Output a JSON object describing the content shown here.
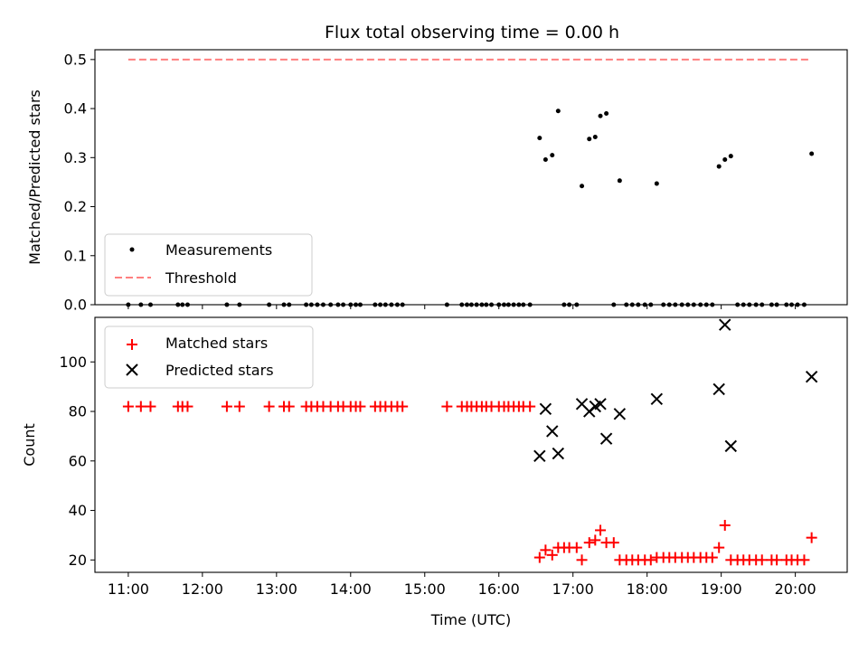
{
  "chart_data": [
    {
      "type": "scatter",
      "title": "Flux total observing time = 0.00 h",
      "ylabel": "Matched/Predicted stars",
      "xlabel": "",
      "x_unit": "hours UTC",
      "xlim": [
        10.55,
        20.7
      ],
      "ylim": [
        0,
        0.52
      ],
      "yticks": [
        "0.0",
        "0.1",
        "0.2",
        "0.3",
        "0.4",
        "0.5"
      ],
      "grid": false,
      "legend_placement": "lower-left",
      "series": [
        {
          "name": "Measurements",
          "marker": "dot",
          "color": "#000000",
          "x": [
            11.0,
            11.17,
            11.3,
            11.67,
            11.73,
            11.8,
            12.33,
            12.5,
            12.9,
            13.1,
            13.17,
            13.4,
            13.47,
            13.55,
            13.63,
            13.73,
            13.83,
            13.9,
            14.0,
            14.07,
            14.13,
            14.33,
            14.4,
            14.47,
            14.55,
            14.63,
            14.7,
            15.3,
            15.5,
            15.57,
            15.63,
            15.7,
            15.77,
            15.83,
            15.9,
            16.0,
            16.07,
            16.13,
            16.2,
            16.27,
            16.33,
            16.42,
            16.55,
            16.63,
            16.72,
            16.8,
            16.88,
            16.95,
            17.05,
            17.12,
            17.22,
            17.3,
            17.37,
            17.45,
            17.55,
            17.63,
            17.72,
            17.8,
            17.88,
            17.97,
            18.05,
            18.13,
            18.22,
            18.3,
            18.38,
            18.47,
            18.55,
            18.63,
            18.72,
            18.8,
            18.88,
            18.97,
            19.05,
            19.13,
            19.22,
            19.3,
            19.38,
            19.47,
            19.55,
            19.68,
            19.75,
            19.88,
            19.95,
            20.03,
            20.12,
            20.22
          ],
          "y": [
            0,
            0,
            0,
            0,
            0,
            0,
            0,
            0,
            0,
            0,
            0,
            0,
            0,
            0,
            0,
            0,
            0,
            0,
            0,
            0,
            0,
            0,
            0,
            0,
            0,
            0,
            0,
            0,
            0,
            0,
            0,
            0,
            0,
            0,
            0,
            0,
            0,
            0,
            0,
            0,
            0,
            0,
            0.34,
            0.296,
            0.305,
            0.395,
            0,
            0,
            0,
            0.242,
            0.338,
            0.342,
            0.385,
            0.39,
            0,
            0.253,
            0,
            0,
            0,
            0,
            0,
            0.247,
            0,
            0,
            0,
            0,
            0,
            0,
            0,
            0,
            0,
            0.282,
            0.296,
            0.303,
            0,
            0,
            0,
            0,
            0,
            0,
            0,
            0,
            0,
            0,
            0,
            0.308
          ]
        },
        {
          "name": "Threshold",
          "type": "line",
          "style": "dashed",
          "color": "#ff7f7f",
          "x": [
            11.0,
            20.22
          ],
          "y": [
            0.5,
            0.5
          ]
        }
      ]
    },
    {
      "type": "scatter",
      "title": "",
      "ylabel": "Count",
      "xlabel": "Time (UTC)",
      "x_unit": "hours UTC",
      "xlim": [
        10.55,
        20.7
      ],
      "xticks": [
        "11:00",
        "12:00",
        "13:00",
        "14:00",
        "15:00",
        "16:00",
        "17:00",
        "18:00",
        "19:00",
        "20:00"
      ],
      "ylim": [
        15,
        118
      ],
      "yticks": [
        "20",
        "40",
        "60",
        "80",
        "100"
      ],
      "grid": false,
      "legend_placement": "upper-left",
      "series": [
        {
          "name": "Matched stars",
          "marker": "plus",
          "color": "#ff0000",
          "x": [
            11.0,
            11.17,
            11.3,
            11.67,
            11.73,
            11.8,
            12.33,
            12.5,
            12.9,
            13.1,
            13.17,
            13.4,
            13.47,
            13.55,
            13.63,
            13.73,
            13.83,
            13.9,
            14.0,
            14.07,
            14.13,
            14.33,
            14.4,
            14.47,
            14.55,
            14.63,
            14.7,
            15.3,
            15.5,
            15.57,
            15.63,
            15.7,
            15.77,
            15.83,
            15.9,
            16.0,
            16.07,
            16.13,
            16.2,
            16.27,
            16.33,
            16.42,
            16.55,
            16.63,
            16.72,
            16.8,
            16.88,
            16.95,
            17.05,
            17.12,
            17.22,
            17.3,
            17.37,
            17.45,
            17.55,
            17.63,
            17.72,
            17.8,
            17.88,
            17.97,
            18.05,
            18.13,
            18.22,
            18.3,
            18.38,
            18.47,
            18.55,
            18.63,
            18.72,
            18.8,
            18.88,
            18.97,
            19.05,
            19.13,
            19.22,
            19.3,
            19.38,
            19.47,
            19.55,
            19.68,
            19.75,
            19.88,
            19.95,
            20.03,
            20.12,
            20.22
          ],
          "y": [
            82,
            82,
            82,
            82,
            82,
            82,
            82,
            82,
            82,
            82,
            82,
            82,
            82,
            82,
            82,
            82,
            82,
            82,
            82,
            82,
            82,
            82,
            82,
            82,
            82,
            82,
            82,
            82,
            82,
            82,
            82,
            82,
            82,
            82,
            82,
            82,
            82,
            82,
            82,
            82,
            82,
            82,
            21,
            24,
            22,
            25,
            25,
            25,
            25,
            20,
            27,
            28,
            32,
            27,
            27,
            20,
            20,
            20,
            20,
            20,
            20,
            21,
            21,
            21,
            21,
            21,
            21,
            21,
            21,
            21,
            21,
            25,
            34,
            20,
            20,
            20,
            20,
            20,
            20,
            20,
            20,
            20,
            20,
            20,
            20,
            29
          ]
        },
        {
          "name": "Predicted stars",
          "marker": "x",
          "color": "#000000",
          "x": [
            16.55,
            16.63,
            16.72,
            16.8,
            17.12,
            17.22,
            17.3,
            17.37,
            17.45,
            17.63,
            18.13,
            18.97,
            19.05,
            19.13,
            20.22
          ],
          "y": [
            62,
            81,
            72,
            63,
            83,
            80,
            82,
            83,
            69,
            79,
            85,
            89,
            115,
            66,
            94
          ]
        }
      ]
    }
  ]
}
